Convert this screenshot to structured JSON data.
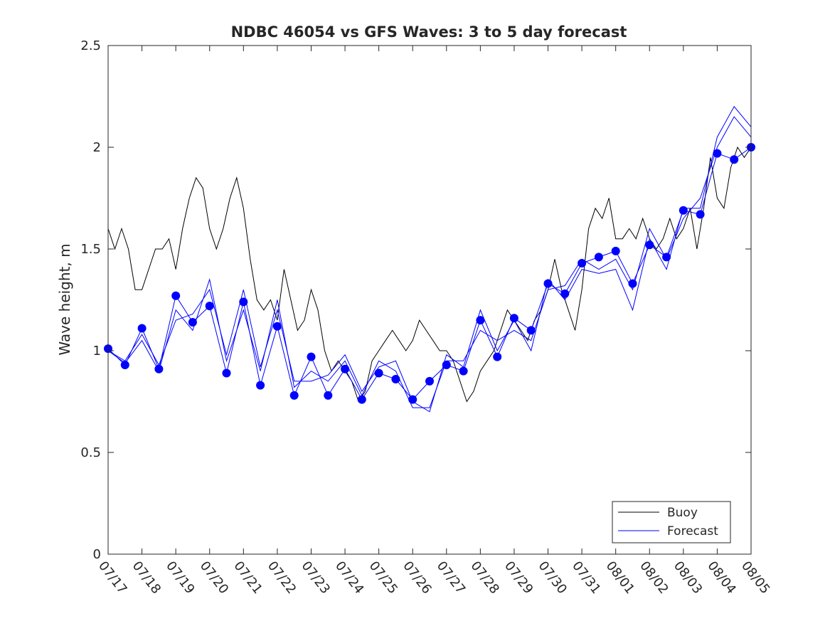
{
  "chart_data": {
    "type": "line",
    "title": "NDBC 46054 vs GFS Waves: 3 to 5 day forecast",
    "xlabel": "",
    "ylabel": "Wave height, m",
    "ylim": [
      0,
      2.5
    ],
    "yticks": [
      "0",
      "0.5",
      "1",
      "1.5",
      "2",
      "2.5"
    ],
    "xticks": [
      "07/17",
      "07/18",
      "07/19",
      "07/20",
      "07/21",
      "07/22",
      "07/23",
      "07/24",
      "07/25",
      "07/26",
      "07/27",
      "07/28",
      "07/29",
      "07/30",
      "07/31",
      "08/01",
      "08/02",
      "08/03",
      "08/04",
      "08/05"
    ],
    "xlim_days": [
      0,
      19
    ],
    "legend": {
      "position": "bottom-right",
      "entries": [
        "Buoy",
        "Forecast"
      ]
    },
    "grid": false,
    "colors": {
      "buoy": "#000000",
      "forecast": "#0000ff"
    },
    "series": [
      {
        "name": "Buoy",
        "x_days": [
          0,
          0.2,
          0.4,
          0.6,
          0.8,
          1.0,
          1.2,
          1.4,
          1.6,
          1.8,
          2.0,
          2.2,
          2.4,
          2.6,
          2.8,
          3.0,
          3.2,
          3.4,
          3.6,
          3.8,
          4.0,
          4.2,
          4.4,
          4.6,
          4.8,
          5.0,
          5.2,
          5.4,
          5.6,
          5.8,
          6.0,
          6.2,
          6.4,
          6.6,
          6.8,
          7.0,
          7.2,
          7.4,
          7.6,
          7.8,
          8.0,
          8.2,
          8.4,
          8.6,
          8.8,
          9.0,
          9.2,
          9.4,
          9.6,
          9.8,
          10.0,
          10.2,
          10.4,
          10.6,
          10.8,
          11.0,
          11.2,
          11.4,
          11.6,
          11.8,
          12.0,
          12.2,
          12.4,
          12.6,
          12.8,
          13.0,
          13.2,
          13.4,
          13.6,
          13.8,
          14.0,
          14.2,
          14.4,
          14.6,
          14.8,
          15.0,
          15.2,
          15.4,
          15.6,
          15.8,
          16.0,
          16.2,
          16.4,
          16.6,
          16.8,
          17.0,
          17.2,
          17.4,
          17.6,
          17.8,
          18.0,
          18.2,
          18.4,
          18.6,
          18.8,
          19.0
        ],
        "values": [
          1.6,
          1.5,
          1.6,
          1.5,
          1.3,
          1.3,
          1.4,
          1.5,
          1.5,
          1.55,
          1.4,
          1.6,
          1.75,
          1.85,
          1.8,
          1.6,
          1.5,
          1.6,
          1.75,
          1.85,
          1.7,
          1.45,
          1.25,
          1.2,
          1.25,
          1.15,
          1.4,
          1.25,
          1.1,
          1.15,
          1.3,
          1.2,
          1.0,
          0.9,
          0.95,
          0.9,
          0.85,
          0.75,
          0.8,
          0.95,
          1.0,
          1.05,
          1.1,
          1.05,
          1.0,
          1.05,
          1.15,
          1.1,
          1.05,
          1.0,
          1.0,
          0.95,
          0.85,
          0.75,
          0.8,
          0.9,
          0.95,
          1.0,
          1.1,
          1.2,
          1.15,
          1.1,
          1.05,
          1.15,
          1.2,
          1.3,
          1.45,
          1.3,
          1.2,
          1.1,
          1.3,
          1.6,
          1.7,
          1.65,
          1.75,
          1.55,
          1.55,
          1.6,
          1.55,
          1.65,
          1.55,
          1.5,
          1.55,
          1.65,
          1.55,
          1.6,
          1.7,
          1.5,
          1.7,
          1.95,
          1.75,
          1.7,
          1.9,
          2.0,
          1.95,
          2.0
        ]
      },
      {
        "name": "Forecast",
        "x_days": [
          0,
          0.5,
          1.0,
          1.5,
          2.0,
          2.5,
          3.0,
          3.5,
          4.0,
          4.5,
          5.0,
          5.5,
          6.0,
          6.5,
          7.0,
          7.5,
          8.0,
          8.5,
          9.0,
          9.5,
          10.0,
          10.5,
          11.0,
          11.5,
          12.0,
          12.5,
          13.0,
          13.5,
          14.0,
          14.5,
          15.0,
          15.5,
          16.0,
          16.5,
          17.0,
          17.5,
          18.0,
          18.5,
          19.0
        ],
        "values": [
          1.01,
          0.93,
          1.11,
          0.91,
          1.27,
          1.14,
          1.22,
          0.89,
          1.24,
          0.83,
          1.12,
          0.78,
          0.97,
          0.78,
          0.91,
          0.76,
          0.89,
          0.86,
          0.76,
          0.85,
          0.93,
          0.9,
          1.15,
          0.97,
          1.16,
          1.1,
          1.33,
          1.28,
          1.43,
          1.46,
          1.49,
          1.33,
          1.52,
          1.46,
          1.69,
          1.67,
          1.97,
          1.94,
          2.0
        ]
      },
      {
        "name": "",
        "x_days": [
          0,
          0.5,
          1.0,
          1.5,
          2.0,
          2.5,
          3.0,
          3.5,
          4.0,
          4.5,
          5.0,
          5.5,
          6.0,
          6.5,
          7.0,
          7.5,
          8.0,
          8.5,
          9.0,
          9.5,
          10.0,
          10.5,
          11.0,
          11.5,
          12.0,
          12.5,
          13.0,
          13.5,
          14.0,
          14.5,
          15.0,
          15.5,
          16.0,
          16.5,
          17.0,
          17.5,
          18.0,
          18.5,
          19.0
        ],
        "values": [
          1.0,
          0.94,
          1.05,
          0.9,
          1.2,
          1.1,
          1.35,
          0.95,
          1.2,
          0.9,
          1.25,
          0.82,
          0.9,
          0.85,
          0.95,
          0.78,
          0.95,
          0.9,
          0.72,
          0.72,
          0.95,
          0.95,
          1.1,
          1.05,
          1.1,
          1.05,
          1.3,
          1.32,
          1.45,
          1.4,
          1.45,
          1.3,
          1.6,
          1.45,
          1.65,
          1.75,
          2.0,
          2.15,
          2.05
        ]
      },
      {
        "name": "",
        "x_days": [
          0,
          0.5,
          1.0,
          1.5,
          2.0,
          2.5,
          3.0,
          3.5,
          4.0,
          4.5,
          5.0,
          5.5,
          6.0,
          6.5,
          7.0,
          7.5,
          8.0,
          8.5,
          9.0,
          9.5,
          10.0,
          10.5,
          11.0,
          11.5,
          12.0,
          12.5,
          13.0,
          13.5,
          14.0,
          14.5,
          15.0,
          15.5,
          16.0,
          16.5,
          17.0,
          17.5,
          18.0,
          18.5,
          19.0
        ],
        "values": [
          1.0,
          0.95,
          1.08,
          0.93,
          1.15,
          1.18,
          1.3,
          0.98,
          1.3,
          0.92,
          1.2,
          0.85,
          0.85,
          0.88,
          0.98,
          0.8,
          0.92,
          0.95,
          0.75,
          0.7,
          0.98,
          0.92,
          1.2,
          1.0,
          1.15,
          1.0,
          1.35,
          1.25,
          1.4,
          1.38,
          1.4,
          1.2,
          1.55,
          1.4,
          1.7,
          1.7,
          2.05,
          2.2,
          2.1
        ]
      }
    ]
  }
}
